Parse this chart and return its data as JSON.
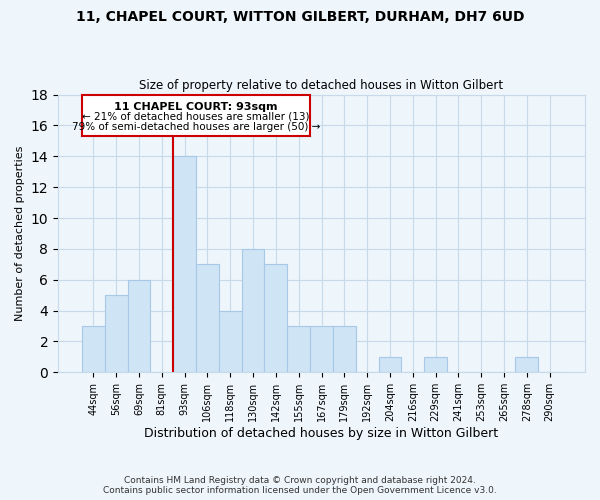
{
  "title": "11, CHAPEL COURT, WITTON GILBERT, DURHAM, DH7 6UD",
  "subtitle": "Size of property relative to detached houses in Witton Gilbert",
  "xlabel": "Distribution of detached houses by size in Witton Gilbert",
  "ylabel": "Number of detached properties",
  "footer_line1": "Contains HM Land Registry data © Crown copyright and database right 2024.",
  "footer_line2": "Contains public sector information licensed under the Open Government Licence v3.0.",
  "bar_labels": [
    "44sqm",
    "56sqm",
    "69sqm",
    "81sqm",
    "93sqm",
    "106sqm",
    "118sqm",
    "130sqm",
    "142sqm",
    "155sqm",
    "167sqm",
    "179sqm",
    "192sqm",
    "204sqm",
    "216sqm",
    "229sqm",
    "241sqm",
    "253sqm",
    "265sqm",
    "278sqm",
    "290sqm"
  ],
  "bar_values": [
    3,
    5,
    6,
    0,
    14,
    7,
    4,
    8,
    7,
    3,
    3,
    3,
    0,
    1,
    0,
    1,
    0,
    0,
    0,
    1,
    0
  ],
  "bar_color": "#cfe4f5",
  "bar_edge_color": "#a8c8e8",
  "vline_color": "#cc0000",
  "ylim": [
    0,
    18
  ],
  "yticks": [
    0,
    2,
    4,
    6,
    8,
    10,
    12,
    14,
    16,
    18
  ],
  "annotation_title": "11 CHAPEL COURT: 93sqm",
  "annotation_line1": "← 21% of detached houses are smaller (13)",
  "annotation_line2": "79% of semi-detached houses are larger (50) →",
  "bg_color": "#eef5fb",
  "grid_color": "#c8daea"
}
